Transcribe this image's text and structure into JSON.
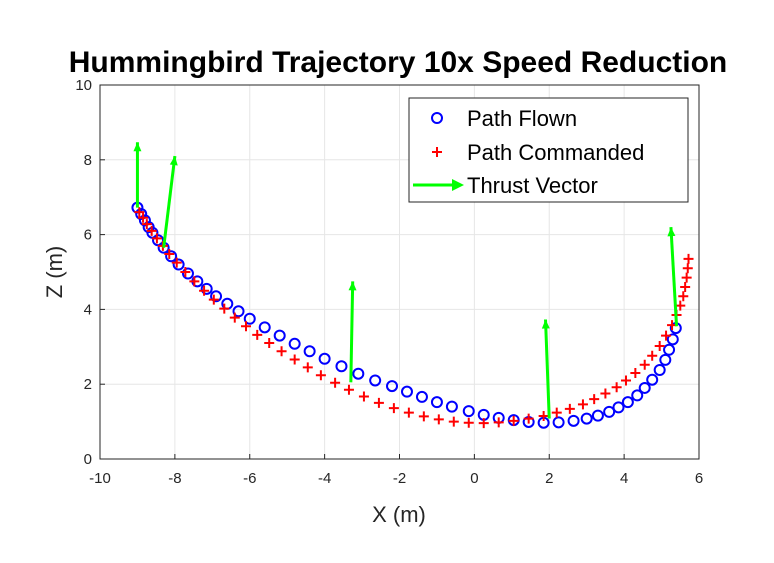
{
  "chart_data": {
    "type": "scatter",
    "title": "Hummingbird Trajectory 10x Speed Reduction",
    "xlabel": "X (m)",
    "ylabel": "Z (m)",
    "xlim": [
      -10,
      6
    ],
    "ylim": [
      0,
      10
    ],
    "xticks": [
      -10,
      -8,
      -6,
      -4,
      -2,
      0,
      2,
      4,
      6
    ],
    "yticks": [
      0,
      2,
      4,
      6,
      8,
      10
    ],
    "grid": true,
    "legend_position": "top-right",
    "series": [
      {
        "name": "Path Flown",
        "marker": "o",
        "color": "#0000ff",
        "x": [
          -9.0,
          -8.9,
          -8.8,
          -8.7,
          -8.6,
          -8.45,
          -8.3,
          -8.1,
          -7.9,
          -7.65,
          -7.4,
          -7.15,
          -6.9,
          -6.6,
          -6.3,
          -6.0,
          -5.6,
          -5.2,
          -4.8,
          -4.4,
          -4.0,
          -3.55,
          -3.1,
          -2.65,
          -2.2,
          -1.8,
          -1.4,
          -1.0,
          -0.6,
          -0.15,
          0.25,
          0.65,
          1.05,
          1.45,
          1.85,
          2.25,
          2.65,
          3.0,
          3.3,
          3.6,
          3.85,
          4.1,
          4.35,
          4.55,
          4.75,
          4.95,
          5.1,
          5.2,
          5.3,
          5.38
        ],
        "y": [
          6.72,
          6.55,
          6.38,
          6.2,
          6.05,
          5.85,
          5.65,
          5.42,
          5.2,
          4.96,
          4.75,
          4.55,
          4.35,
          4.15,
          3.95,
          3.75,
          3.52,
          3.3,
          3.08,
          2.88,
          2.68,
          2.48,
          2.28,
          2.1,
          1.95,
          1.8,
          1.66,
          1.52,
          1.4,
          1.28,
          1.18,
          1.1,
          1.04,
          0.99,
          0.97,
          0.98,
          1.02,
          1.08,
          1.16,
          1.26,
          1.38,
          1.52,
          1.7,
          1.9,
          2.12,
          2.38,
          2.65,
          2.92,
          3.2,
          3.5
        ]
      },
      {
        "name": "Path Commanded",
        "marker": "+",
        "color": "#ff0000",
        "x": [
          -8.95,
          -8.85,
          -8.75,
          -8.62,
          -8.48,
          -8.32,
          -8.15,
          -7.95,
          -7.72,
          -7.48,
          -7.22,
          -6.96,
          -6.68,
          -6.4,
          -6.1,
          -5.8,
          -5.48,
          -5.15,
          -4.8,
          -4.45,
          -4.1,
          -3.72,
          -3.35,
          -2.95,
          -2.55,
          -2.15,
          -1.75,
          -1.35,
          -0.95,
          -0.55,
          -0.15,
          0.25,
          0.65,
          1.05,
          1.45,
          1.85,
          2.2,
          2.55,
          2.9,
          3.2,
          3.5,
          3.8,
          4.05,
          4.3,
          4.55,
          4.75,
          4.95,
          5.12,
          5.28,
          5.4,
          5.5,
          5.58,
          5.63,
          5.67,
          5.7,
          5.72
        ],
        "y": [
          6.6,
          6.45,
          6.28,
          6.1,
          5.9,
          5.7,
          5.48,
          5.25,
          5.0,
          4.75,
          4.5,
          4.26,
          4.02,
          3.78,
          3.55,
          3.32,
          3.1,
          2.88,
          2.66,
          2.45,
          2.24,
          2.04,
          1.85,
          1.67,
          1.5,
          1.36,
          1.24,
          1.14,
          1.06,
          1.0,
          0.97,
          0.96,
          0.98,
          1.02,
          1.08,
          1.15,
          1.24,
          1.34,
          1.46,
          1.6,
          1.75,
          1.92,
          2.1,
          2.3,
          2.52,
          2.76,
          3.02,
          3.3,
          3.58,
          3.85,
          4.1,
          4.35,
          4.6,
          4.85,
          5.1,
          5.35
        ]
      },
      {
        "name": "Thrust Vector",
        "marker": "arrow",
        "color": "#00ff00",
        "vectors": [
          {
            "x": -9.0,
            "y": 6.72,
            "dx": 0.0,
            "dy": 1.75
          },
          {
            "x": -8.3,
            "y": 5.65,
            "dx": 0.3,
            "dy": 2.45
          },
          {
            "x": -3.3,
            "y": 2.05,
            "dx": 0.05,
            "dy": 2.7
          },
          {
            "x": 2.0,
            "y": 1.08,
            "dx": -0.1,
            "dy": 2.65
          },
          {
            "x": 5.4,
            "y": 3.55,
            "dx": -0.15,
            "dy": 2.65
          }
        ]
      }
    ]
  }
}
